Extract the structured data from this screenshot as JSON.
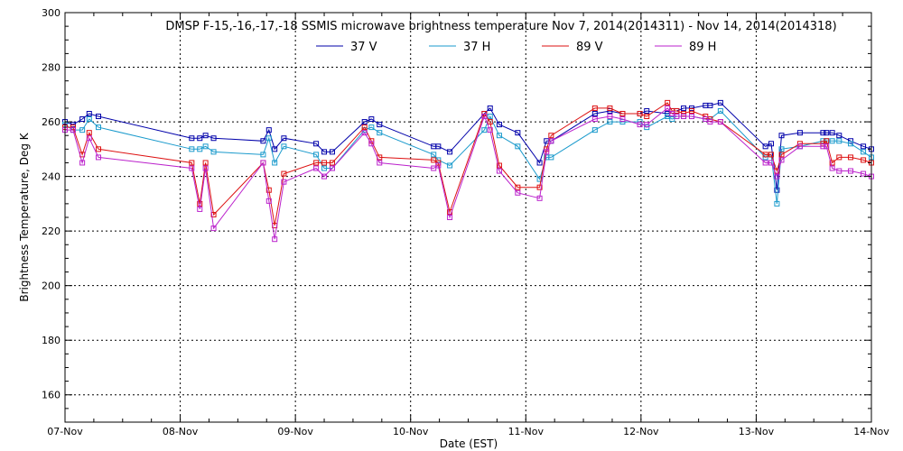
{
  "chart_data": {
    "type": "line",
    "title": "DMSP F-15,-16,-17,-18 SSMIS microwave brightness temperature Nov  7, 2014(2014311) - Nov 14, 2014(2014318)",
    "xlabel": "Date (EST)",
    "ylabel": "Brightness Temperature, Deg K",
    "xlim": [
      0,
      7
    ],
    "ylim": [
      150,
      300
    ],
    "x_ticks": [
      0,
      1,
      2,
      3,
      4,
      5,
      6,
      7
    ],
    "x_tick_labels": [
      "07-Nov",
      "08-Nov",
      "09-Nov",
      "10-Nov",
      "11-Nov",
      "12-Nov",
      "13-Nov",
      "14-Nov"
    ],
    "y_ticks": [
      160,
      180,
      200,
      220,
      240,
      260,
      280,
      300
    ],
    "y_tick_labels": [
      "160",
      "180",
      "200",
      "220",
      "240",
      "260",
      "280",
      "300"
    ],
    "x_unit": "days since 07-Nov 00:00 EST",
    "grid": true,
    "legend_position": "top-center",
    "series": [
      {
        "name": "37 V",
        "color": "#0000aa",
        "x": [
          0.0,
          0.07,
          0.15,
          0.21,
          0.29,
          1.1,
          1.17,
          1.22,
          1.29,
          1.72,
          1.77,
          1.82,
          1.9,
          2.18,
          2.25,
          2.32,
          2.6,
          2.66,
          2.73,
          3.2,
          3.24,
          3.34,
          3.64,
          3.69,
          3.77,
          3.93,
          4.12,
          4.18,
          4.22,
          4.6,
          4.73,
          4.84,
          4.99,
          5.05,
          5.23,
          5.27,
          5.31,
          5.37,
          5.44,
          5.56,
          5.6,
          5.69,
          6.08,
          6.13,
          6.18,
          6.22,
          6.38,
          6.58,
          6.61,
          6.66,
          6.72,
          6.82,
          6.93,
          7.0
        ],
        "y": [
          260,
          259,
          261,
          263,
          262,
          254,
          254,
          255,
          254,
          253,
          257,
          250,
          254,
          252,
          249,
          249,
          260,
          261,
          259,
          251,
          251,
          249,
          263,
          265,
          259,
          256,
          245,
          253,
          253,
          263,
          264,
          263,
          263,
          264,
          263,
          264,
          264,
          265,
          265,
          266,
          266,
          267,
          251,
          252,
          235,
          255,
          256,
          256,
          256,
          256,
          255,
          253,
          251,
          250
        ]
      },
      {
        "name": "37 H",
        "color": "#1a9acc",
        "x": [
          0.0,
          0.07,
          0.15,
          0.21,
          0.29,
          1.1,
          1.17,
          1.22,
          1.29,
          1.72,
          1.77,
          1.82,
          1.9,
          2.18,
          2.25,
          2.32,
          2.6,
          2.66,
          2.73,
          3.2,
          3.24,
          3.34,
          3.64,
          3.69,
          3.77,
          3.93,
          4.12,
          4.18,
          4.22,
          4.6,
          4.73,
          4.84,
          4.99,
          5.05,
          5.23,
          5.27,
          5.31,
          5.37,
          5.44,
          5.56,
          5.6,
          5.69,
          6.08,
          6.13,
          6.18,
          6.22,
          6.38,
          6.58,
          6.61,
          6.66,
          6.72,
          6.82,
          6.93,
          7.0
        ],
        "y": [
          259,
          257,
          257,
          261,
          258,
          250,
          250,
          251,
          249,
          248,
          254,
          245,
          251,
          248,
          243,
          243,
          257,
          258,
          256,
          248,
          246,
          244,
          257,
          262,
          255,
          251,
          239,
          247,
          247,
          257,
          260,
          260,
          260,
          258,
          262,
          261,
          262,
          262,
          262,
          261,
          261,
          264,
          247,
          248,
          230,
          250,
          251,
          253,
          253,
          253,
          253,
          252,
          249,
          247
        ]
      },
      {
        "name": "89 V",
        "color": "#dd1111",
        "x": [
          0.0,
          0.07,
          0.15,
          0.21,
          0.29,
          1.1,
          1.17,
          1.22,
          1.29,
          1.72,
          1.77,
          1.82,
          1.9,
          2.18,
          2.25,
          2.32,
          2.6,
          2.66,
          2.73,
          3.2,
          3.24,
          3.34,
          3.64,
          3.69,
          3.77,
          3.93,
          4.12,
          4.18,
          4.22,
          4.6,
          4.73,
          4.84,
          4.99,
          5.05,
          5.23,
          5.27,
          5.31,
          5.37,
          5.44,
          5.56,
          5.6,
          5.69,
          6.08,
          6.13,
          6.18,
          6.22,
          6.38,
          6.58,
          6.61,
          6.66,
          6.72,
          6.82,
          6.93,
          7.0
        ],
        "y": [
          258,
          258,
          248,
          256,
          250,
          245,
          230,
          245,
          226,
          245,
          235,
          222,
          241,
          245,
          245,
          245,
          258,
          253,
          247,
          246,
          245,
          227,
          263,
          260,
          244,
          236,
          236,
          250,
          255,
          265,
          265,
          263,
          263,
          262,
          267,
          264,
          264,
          263,
          264,
          262,
          261,
          260,
          248,
          248,
          242,
          248,
          252,
          252,
          253,
          245,
          247,
          247,
          246,
          245
        ]
      },
      {
        "name": "89 H",
        "color": "#bb22cc",
        "x": [
          0.0,
          0.07,
          0.15,
          0.21,
          0.29,
          1.1,
          1.17,
          1.22,
          1.29,
          1.72,
          1.77,
          1.82,
          1.9,
          2.18,
          2.25,
          2.32,
          2.6,
          2.66,
          2.73,
          3.2,
          3.24,
          3.34,
          3.64,
          3.69,
          3.77,
          3.93,
          4.12,
          4.18,
          4.22,
          4.6,
          4.73,
          4.84,
          4.99,
          5.05,
          5.23,
          5.27,
          5.31,
          5.37,
          5.44,
          5.56,
          5.6,
          5.69,
          6.08,
          6.13,
          6.18,
          6.22,
          6.38,
          6.58,
          6.61,
          6.66,
          6.72,
          6.82,
          6.93,
          7.0
        ],
        "y": [
          257,
          257,
          245,
          254,
          247,
          243,
          228,
          243,
          221,
          245,
          231,
          217,
          238,
          243,
          240,
          243,
          256,
          252,
          245,
          243,
          244,
          225,
          262,
          257,
          242,
          234,
          232,
          249,
          253,
          261,
          262,
          261,
          259,
          259,
          265,
          263,
          262,
          262,
          262,
          261,
          260,
          260,
          245,
          245,
          240,
          246,
          251,
          251,
          251,
          243,
          242,
          242,
          241,
          240
        ]
      }
    ]
  }
}
